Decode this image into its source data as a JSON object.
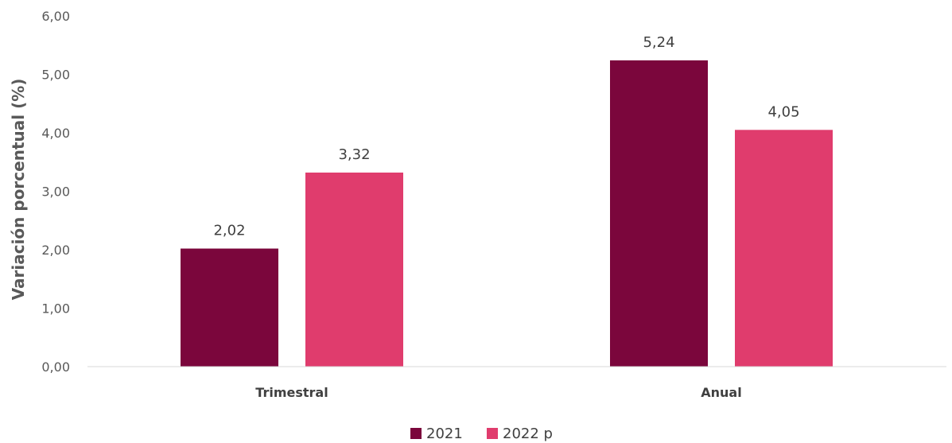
{
  "chart_data": {
    "type": "bar",
    "title": "",
    "xlabel": "",
    "ylabel": "Variación porcentual (%)",
    "categories": [
      "Trimestral",
      "Anual"
    ],
    "series": [
      {
        "name": "2021",
        "values": [
          2.02,
          5.24
        ],
        "labels": [
          "2,02",
          "5,24"
        ],
        "color": "#7B063C"
      },
      {
        "name": "2022 p",
        "values": [
          3.32,
          4.05
        ],
        "labels": [
          "3,32",
          "4,05"
        ],
        "color": "#E03C6D"
      }
    ],
    "ylim": [
      0,
      6
    ],
    "yticks": [
      0,
      1,
      2,
      3,
      4,
      5,
      6
    ],
    "ytick_labels": [
      "0,00",
      "1,00",
      "2,00",
      "3,00",
      "4,00",
      "5,00",
      "6,00"
    ],
    "grid": false,
    "legend": "bottom-center"
  }
}
